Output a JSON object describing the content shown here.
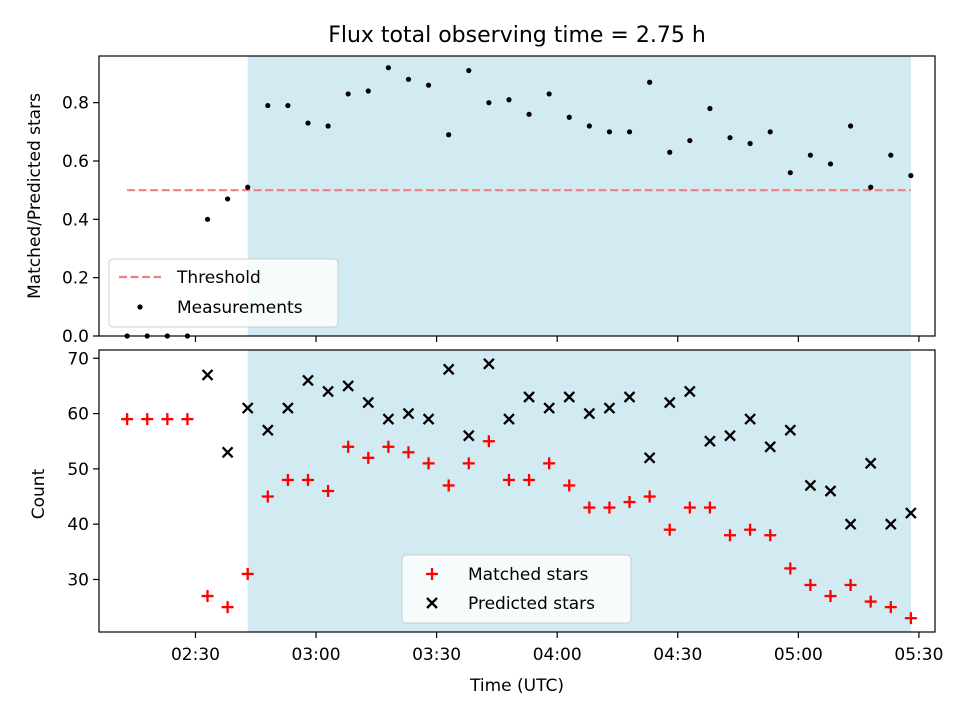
{
  "figure": {
    "title": "Flux total observing time = 2.75 h",
    "xlabel": "Time (UTC)",
    "xticks": [
      {
        "t": "02:30",
        "label": "02:30"
      },
      {
        "t": "03:00",
        "label": "03:00"
      },
      {
        "t": "03:30",
        "label": "03:30"
      },
      {
        "t": "04:00",
        "label": "04:00"
      },
      {
        "t": "04:30",
        "label": "04:30"
      },
      {
        "t": "05:00",
        "label": "05:00"
      },
      {
        "t": "05:30",
        "label": "05:30"
      }
    ],
    "xlim": [
      "02:06",
      "05:34"
    ],
    "shaded_span": [
      "02:43",
      "05:28"
    ],
    "shade_color": "#add8e6"
  },
  "chart_data": [
    {
      "type": "scatter",
      "panel": "top",
      "ylabel": "Matched/Predicted stars",
      "ylim": [
        0.0,
        0.96
      ],
      "yticks": [
        {
          "v": 0.0,
          "label": "0.0"
        },
        {
          "v": 0.2,
          "label": "0.2"
        },
        {
          "v": 0.4,
          "label": "0.4"
        },
        {
          "v": 0.6,
          "label": "0.6"
        },
        {
          "v": 0.8,
          "label": "0.8"
        }
      ],
      "threshold": {
        "name": "Threshold",
        "y": 0.5,
        "x_range": [
          "02:13",
          "05:28"
        ],
        "color": "#f08080"
      },
      "measurements": {
        "name": "Measurements",
        "color": "#000000",
        "x": [
          "02:13",
          "02:18",
          "02:23",
          "02:28",
          "02:33",
          "02:38",
          "02:43",
          "02:48",
          "02:53",
          "02:58",
          "03:03",
          "03:08",
          "03:13",
          "03:18",
          "03:23",
          "03:28",
          "03:33",
          "03:38",
          "03:43",
          "03:48",
          "03:53",
          "03:58",
          "04:03",
          "04:08",
          "04:13",
          "04:18",
          "04:23",
          "04:28",
          "04:33",
          "04:38",
          "04:43",
          "04:48",
          "04:53",
          "04:58",
          "05:03",
          "05:08",
          "05:13",
          "05:18",
          "05:23",
          "05:28"
        ],
        "y": [
          0.0,
          0.0,
          0.0,
          0.0,
          0.4,
          0.47,
          0.51,
          0.79,
          0.79,
          0.73,
          0.72,
          0.83,
          0.84,
          0.92,
          0.88,
          0.86,
          0.69,
          0.91,
          0.8,
          0.81,
          0.76,
          0.83,
          0.75,
          0.72,
          0.7,
          0.7,
          0.87,
          0.63,
          0.67,
          0.78,
          0.68,
          0.66,
          0.7,
          0.56,
          0.62,
          0.59,
          0.72,
          0.51,
          0.62,
          0.55
        ]
      },
      "legend": {
        "location": "lower-left",
        "entries": [
          "Threshold",
          "Measurements"
        ]
      }
    },
    {
      "type": "scatter",
      "panel": "bottom",
      "ylabel": "Count",
      "ylim": [
        20.5,
        71.5
      ],
      "yticks": [
        {
          "v": 30,
          "label": "30"
        },
        {
          "v": 40,
          "label": "40"
        },
        {
          "v": 50,
          "label": "50"
        },
        {
          "v": 60,
          "label": "60"
        },
        {
          "v": 70,
          "label": "70"
        }
      ],
      "series": [
        {
          "name": "Matched stars",
          "marker": "plus",
          "color": "#ff0000",
          "x": [
            "02:13",
            "02:18",
            "02:23",
            "02:28",
            "02:33",
            "02:38",
            "02:43",
            "02:48",
            "02:53",
            "02:58",
            "03:03",
            "03:08",
            "03:13",
            "03:18",
            "03:23",
            "03:28",
            "03:33",
            "03:38",
            "03:43",
            "03:48",
            "03:53",
            "03:58",
            "04:03",
            "04:08",
            "04:13",
            "04:18",
            "04:23",
            "04:28",
            "04:33",
            "04:38",
            "04:43",
            "04:48",
            "04:53",
            "04:58",
            "05:03",
            "05:08",
            "05:13",
            "05:18",
            "05:23",
            "05:28"
          ],
          "values": [
            59,
            59,
            59,
            59,
            27,
            25,
            31,
            45,
            48,
            48,
            46,
            54,
            52,
            54,
            53,
            51,
            47,
            51,
            55,
            48,
            48,
            51,
            47,
            43,
            43,
            44,
            45,
            39,
            43,
            43,
            38,
            39,
            38,
            32,
            29,
            27,
            29,
            26,
            25,
            23
          ]
        },
        {
          "name": "Predicted stars",
          "marker": "x",
          "color": "#000000",
          "x": [
            "02:33",
            "02:38",
            "02:43",
            "02:48",
            "02:53",
            "02:58",
            "03:03",
            "03:08",
            "03:13",
            "03:18",
            "03:23",
            "03:28",
            "03:33",
            "03:38",
            "03:43",
            "03:48",
            "03:53",
            "03:58",
            "04:03",
            "04:08",
            "04:13",
            "04:18",
            "04:23",
            "04:28",
            "04:33",
            "04:38",
            "04:43",
            "04:48",
            "04:53",
            "04:58",
            "05:03",
            "05:08",
            "05:13",
            "05:18",
            "05:23",
            "05:28"
          ],
          "values": [
            67,
            53,
            61,
            57,
            61,
            66,
            64,
            65,
            62,
            59,
            60,
            59,
            68,
            56,
            69,
            59,
            63,
            61,
            63,
            60,
            61,
            63,
            52,
            62,
            64,
            55,
            56,
            59,
            54,
            57,
            47,
            46,
            40,
            51,
            40,
            42
          ]
        }
      ],
      "legend": {
        "location": "lower-center",
        "entries": [
          "Matched stars",
          "Predicted stars"
        ]
      }
    }
  ]
}
